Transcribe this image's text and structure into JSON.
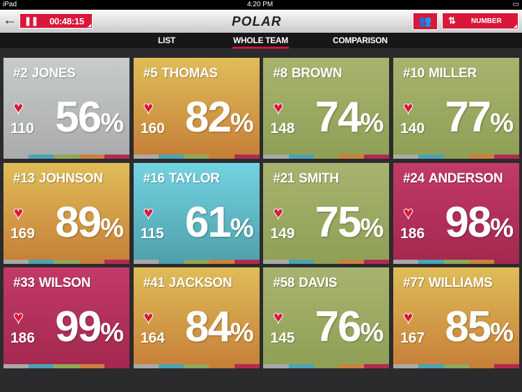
{
  "status_bar": {
    "device": "iPad",
    "time": "4:20 PM"
  },
  "header": {
    "timer": "00:48:15",
    "logo": "POLAR",
    "sort_label": "NUMBER",
    "icons": {
      "back": "arrow-left-icon",
      "pause": "pause-icon",
      "settings": "user-settings-icon",
      "sort": "sort-icon"
    }
  },
  "tabs": [
    {
      "label": "LIST"
    },
    {
      "label": "WHOLE TEAM",
      "active": true
    },
    {
      "label": "COMPARISON"
    }
  ],
  "zone_colors": {
    "gray": "#a9aaa8",
    "blue": "#4ba3b3",
    "green": "#8fa859",
    "orange": "#c8823d",
    "red": "#b22a50"
  },
  "players": [
    {
      "number": "#2",
      "name": "JONES",
      "hr": "110",
      "percent": "56",
      "zone": "gray"
    },
    {
      "number": "#5",
      "name": "THOMAS",
      "hr": "160",
      "percent": "82",
      "zone": "orange"
    },
    {
      "number": "#8",
      "name": "BROWN",
      "hr": "148",
      "percent": "74",
      "zone": "green"
    },
    {
      "number": "#10",
      "name": "MILLER",
      "hr": "140",
      "percent": "77",
      "zone": "green"
    },
    {
      "number": "#13",
      "name": "JOHNSON",
      "hr": "169",
      "percent": "89",
      "zone": "orange"
    },
    {
      "number": "#16",
      "name": "TAYLOR",
      "hr": "115",
      "percent": "61",
      "zone": "blue"
    },
    {
      "number": "#21",
      "name": "SMITH",
      "hr": "149",
      "percent": "75",
      "zone": "green"
    },
    {
      "number": "#24",
      "name": "ANDERSON",
      "hr": "186",
      "percent": "98",
      "zone": "red"
    },
    {
      "number": "#33",
      "name": "WILSON",
      "hr": "186",
      "percent": "99",
      "zone": "red"
    },
    {
      "number": "#41",
      "name": "JACKSON",
      "hr": "164",
      "percent": "84",
      "zone": "orange"
    },
    {
      "number": "#58",
      "name": "DAVIS",
      "hr": "145",
      "percent": "76",
      "zone": "green"
    },
    {
      "number": "#77",
      "name": "WILLIAMS",
      "hr": "167",
      "percent": "85",
      "zone": "orange"
    }
  ],
  "percent_sign": "%"
}
